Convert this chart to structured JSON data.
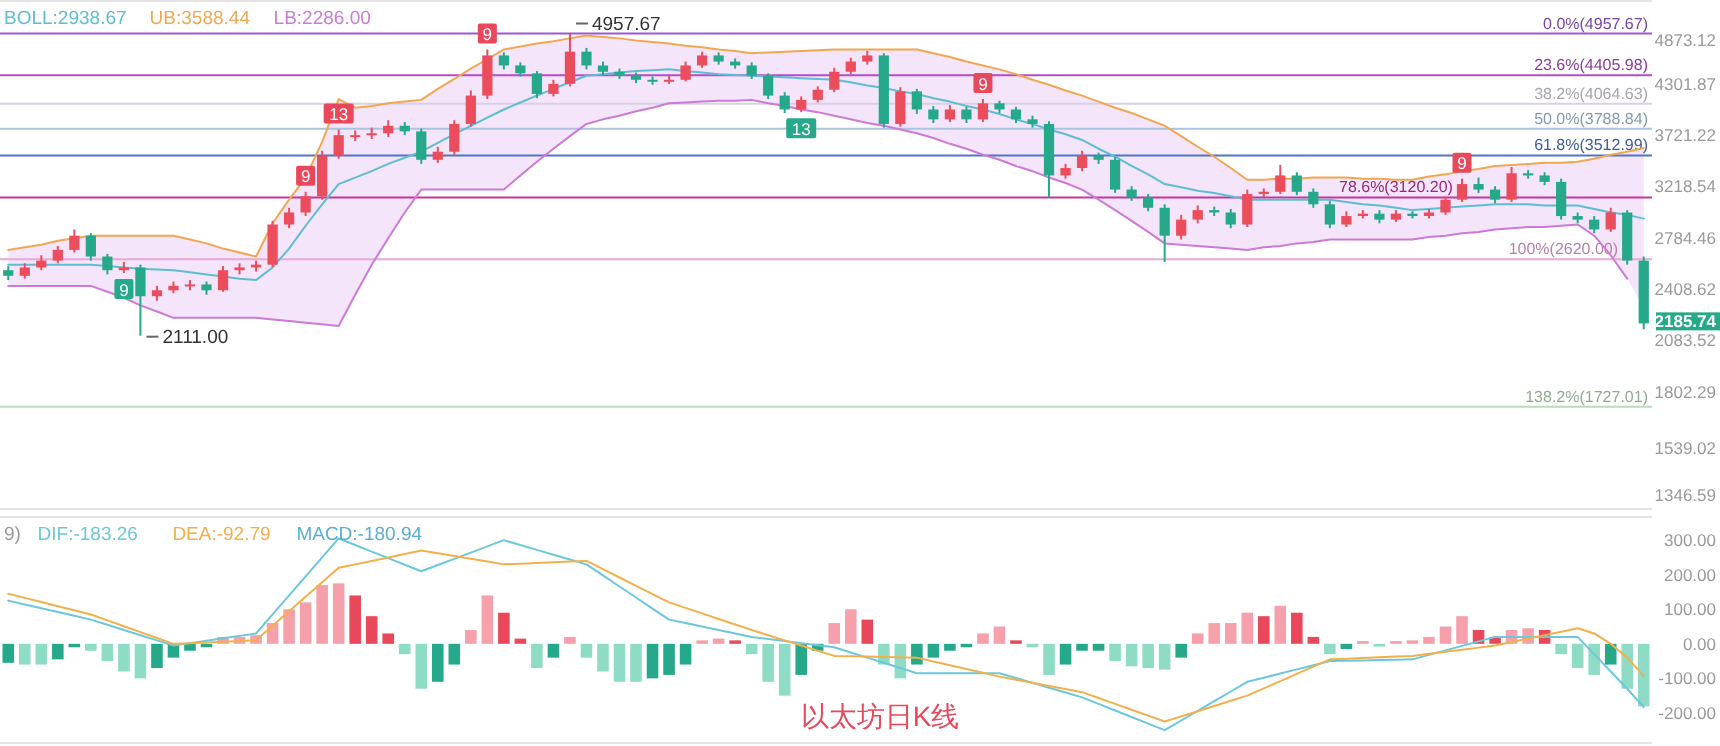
{
  "chart_data": [
    {
      "type": "candlestick",
      "log": true,
      "tick_labels": "y",
      "ylim": [
        1290,
        5450
      ],
      "yticks": [
        4873.12,
        4301.87,
        3721.22,
        3218.54,
        2784.46,
        2408.62,
        2083.52,
        1802.29,
        1539.02,
        1346.59
      ],
      "categories": [
        null,
        null,
        null,
        null,
        null,
        null,
        null,
        null,
        null,
        null,
        null,
        null,
        null,
        null,
        null,
        null,
        null,
        null,
        null,
        null,
        null,
        null,
        null,
        null,
        null,
        null,
        null,
        null,
        null,
        null,
        null,
        null,
        null,
        null,
        null,
        null,
        null,
        null,
        null,
        null,
        null,
        null,
        null,
        null,
        null,
        null,
        null,
        null,
        null,
        null,
        null,
        null,
        null,
        null,
        null,
        null,
        null,
        null,
        null,
        null,
        null,
        null,
        null,
        null,
        null,
        null,
        null,
        null,
        null,
        null,
        null,
        null,
        null,
        null,
        null,
        null,
        null,
        null,
        null,
        null,
        null,
        null,
        null,
        null,
        null,
        null,
        null,
        null,
        null,
        null,
        null,
        null,
        null,
        null,
        null,
        null,
        null,
        null,
        null,
        null
      ],
      "ohlc": [
        [
          2540,
          2570,
          2470,
          2500
        ],
        [
          2500,
          2590,
          2480,
          2560
        ],
        [
          2560,
          2650,
          2540,
          2610
        ],
        [
          2610,
          2720,
          2590,
          2690
        ],
        [
          2690,
          2850,
          2670,
          2800
        ],
        [
          2800,
          2820,
          2610,
          2640
        ],
        [
          2640,
          2660,
          2510,
          2540
        ],
        [
          2540,
          2600,
          2520,
          2560
        ],
        [
          2560,
          2580,
          2111,
          2360
        ],
        [
          2360,
          2430,
          2330,
          2400
        ],
        [
          2400,
          2460,
          2380,
          2430
        ],
        [
          2430,
          2470,
          2400,
          2440
        ],
        [
          2440,
          2460,
          2370,
          2400
        ],
        [
          2400,
          2570,
          2390,
          2540
        ],
        [
          2540,
          2590,
          2510,
          2560
        ],
        [
          2560,
          2610,
          2530,
          2580
        ],
        [
          2580,
          2920,
          2560,
          2890
        ],
        [
          2890,
          3030,
          2860,
          2990
        ],
        [
          2990,
          3170,
          2960,
          3130
        ],
        [
          3130,
          3560,
          3100,
          3510
        ],
        [
          3510,
          3780,
          3480,
          3720
        ],
        [
          3720,
          3770,
          3660,
          3720
        ],
        [
          3720,
          3800,
          3680,
          3740
        ],
        [
          3740,
          3880,
          3700,
          3820
        ],
        [
          3820,
          3860,
          3720,
          3760
        ],
        [
          3760,
          3790,
          3430,
          3470
        ],
        [
          3470,
          3600,
          3440,
          3550
        ],
        [
          3550,
          3880,
          3520,
          3840
        ],
        [
          3840,
          4220,
          3810,
          4160
        ],
        [
          4160,
          4740,
          4120,
          4660
        ],
        [
          4660,
          4700,
          4480,
          4530
        ],
        [
          4530,
          4570,
          4390,
          4430
        ],
        [
          4430,
          4460,
          4130,
          4180
        ],
        [
          4180,
          4350,
          4150,
          4300
        ],
        [
          4300,
          4957.67,
          4270,
          4710
        ],
        [
          4710,
          4760,
          4480,
          4530
        ],
        [
          4530,
          4580,
          4410,
          4450
        ],
        [
          4450,
          4490,
          4360,
          4400
        ],
        [
          4400,
          4440,
          4310,
          4350
        ],
        [
          4350,
          4390,
          4290,
          4330
        ],
        [
          4330,
          4400,
          4300,
          4350
        ],
        [
          4350,
          4580,
          4330,
          4530
        ],
        [
          4530,
          4710,
          4500,
          4660
        ],
        [
          4660,
          4700,
          4540,
          4580
        ],
        [
          4580,
          4620,
          4490,
          4530
        ],
        [
          4530,
          4570,
          4360,
          4400
        ],
        [
          4400,
          4430,
          4120,
          4160
        ],
        [
          4160,
          4200,
          3960,
          4000
        ],
        [
          4000,
          4150,
          3970,
          4110
        ],
        [
          4110,
          4270,
          4080,
          4230
        ],
        [
          4230,
          4500,
          4200,
          4450
        ],
        [
          4450,
          4630,
          4420,
          4580
        ],
        [
          4580,
          4720,
          4540,
          4660
        ],
        [
          4660,
          4690,
          3800,
          3840
        ],
        [
          3840,
          4260,
          3810,
          4210
        ],
        [
          4210,
          4240,
          3950,
          4000
        ],
        [
          4000,
          4040,
          3850,
          3890
        ],
        [
          3890,
          4050,
          3860,
          4000
        ],
        [
          4000,
          4030,
          3850,
          3890
        ],
        [
          3890,
          4120,
          3860,
          4070
        ],
        [
          4070,
          4100,
          3960,
          4000
        ],
        [
          4000,
          4030,
          3850,
          3890
        ],
        [
          3890,
          3930,
          3800,
          3840
        ],
        [
          3840,
          3870,
          3120,
          3320
        ],
        [
          3320,
          3430,
          3290,
          3390
        ],
        [
          3390,
          3560,
          3360,
          3510
        ],
        [
          3510,
          3540,
          3430,
          3470
        ],
        [
          3470,
          3500,
          3160,
          3190
        ],
        [
          3190,
          3220,
          3090,
          3120
        ],
        [
          3120,
          3150,
          3000,
          3030
        ],
        [
          3030,
          3060,
          2600,
          2800
        ],
        [
          2800,
          2970,
          2770,
          2930
        ],
        [
          2930,
          3050,
          2900,
          3010
        ],
        [
          3010,
          3040,
          2960,
          2990
        ],
        [
          2990,
          3020,
          2860,
          2890
        ],
        [
          2890,
          3190,
          2870,
          3150
        ],
        [
          3150,
          3200,
          3120,
          3170
        ],
        [
          3170,
          3420,
          3150,
          3320
        ],
        [
          3320,
          3350,
          3140,
          3170
        ],
        [
          3170,
          3200,
          3030,
          3060
        ],
        [
          3060,
          3090,
          2860,
          2890
        ],
        [
          2890,
          3000,
          2870,
          2960
        ],
        [
          2960,
          3010,
          2940,
          2980
        ],
        [
          2980,
          3010,
          2900,
          2930
        ],
        [
          2930,
          3010,
          2910,
          2980
        ],
        [
          2980,
          3000,
          2940,
          2960
        ],
        [
          2960,
          3020,
          2940,
          2990
        ],
        [
          2990,
          3130,
          2970,
          3100
        ],
        [
          3100,
          3290,
          3080,
          3240
        ],
        [
          3240,
          3300,
          3160,
          3190
        ],
        [
          3190,
          3220,
          3070,
          3100
        ],
        [
          3100,
          3400,
          3080,
          3340
        ],
        [
          3340,
          3370,
          3290,
          3320
        ],
        [
          3320,
          3350,
          3230,
          3260
        ],
        [
          3260,
          3290,
          2930,
          2960
        ],
        [
          2960,
          2990,
          2900,
          2930
        ],
        [
          2930,
          2960,
          2820,
          2850
        ],
        [
          2850,
          3030,
          2830,
          2990
        ],
        [
          2990,
          3010,
          2580,
          2610
        ],
        [
          2610,
          2640,
          2150,
          2185.74
        ]
      ],
      "value_labels": [
        null,
        null,
        null,
        null,
        null,
        null,
        null,
        null,
        "2111.00",
        null,
        null,
        null,
        null,
        null,
        null,
        null,
        null,
        null,
        null,
        null,
        null,
        null,
        null,
        null,
        null,
        null,
        null,
        null,
        null,
        null,
        null,
        null,
        null,
        null,
        "4957.67",
        null,
        null,
        null,
        null,
        null,
        null,
        null,
        null,
        null,
        null,
        null,
        null,
        null,
        null,
        null,
        null,
        null,
        null,
        null,
        null,
        null,
        null,
        null,
        null,
        null,
        null,
        null,
        null,
        null,
        null,
        null,
        null,
        null,
        null,
        null,
        null,
        null,
        null,
        null,
        null,
        null,
        null,
        null,
        null,
        null,
        null,
        null,
        null,
        null,
        null,
        null,
        null,
        null,
        null,
        null,
        null,
        null,
        null,
        null,
        null,
        null,
        null,
        null,
        null,
        "2185.74"
      ],
      "colors": [
        "#26a98a",
        "#eb4d5c",
        "#eb4d5c",
        "#eb4d5c",
        "#eb4d5c",
        "#26a98a",
        "#26a98a",
        "#eb4d5c",
        "#26a98a",
        "#eb4d5c",
        "#eb4d5c",
        "#eb4d5c",
        "#26a98a",
        "#eb4d5c",
        "#eb4d5c",
        "#eb4d5c",
        "#eb4d5c",
        "#eb4d5c",
        "#eb4d5c",
        "#eb4d5c",
        "#eb4d5c",
        "#eb4d5c",
        "#eb4d5c",
        "#eb4d5c",
        "#26a98a",
        "#26a98a",
        "#eb4d5c",
        "#eb4d5c",
        "#eb4d5c",
        "#eb4d5c",
        "#26a98a",
        "#26a98a",
        "#26a98a",
        "#eb4d5c",
        "#eb4d5c",
        "#26a98a",
        "#26a98a",
        "#26a98a",
        "#26a98a",
        "#26a98a",
        "#eb4d5c",
        "#eb4d5c",
        "#eb4d5c",
        "#26a98a",
        "#26a98a",
        "#26a98a",
        "#26a98a",
        "#26a98a",
        "#eb4d5c",
        "#eb4d5c",
        "#eb4d5c",
        "#eb4d5c",
        "#eb4d5c",
        "#26a98a",
        "#eb4d5c",
        "#26a98a",
        "#26a98a",
        "#eb4d5c",
        "#26a98a",
        "#eb4d5c",
        "#26a98a",
        "#26a98a",
        "#26a98a",
        "#26a98a",
        "#eb4d5c",
        "#eb4d5c",
        "#26a98a",
        "#26a98a",
        "#26a98a",
        "#26a98a",
        "#26a98a",
        "#eb4d5c",
        "#eb4d5c",
        "#26a98a",
        "#26a98a",
        "#eb4d5c",
        "#eb4d5c",
        "#eb4d5c",
        "#26a98a",
        "#26a98a",
        "#26a98a",
        "#eb4d5c",
        "#eb4d5c",
        "#26a98a",
        "#eb4d5c",
        "#26a98a",
        "#eb4d5c",
        "#eb4d5c",
        "#eb4d5c",
        "#26a98a",
        "#26a98a",
        "#eb4d5c",
        "#26a98a",
        "#26a98a",
        "#26a98a",
        "#26a98a",
        "#26a98a",
        "#eb4d5c",
        "#26a98a",
        "#26a98a"
      ],
      "series": [
        {
          "type": "line",
          "name": "BOLL:2938.67",
          "color": "#5fbcd3",
          "values": [
            2580,
            2580,
            2580,
            2580,
            2580,
            2580,
            2570,
            2560,
            2550,
            2545,
            2540,
            2525,
            2510,
            2495,
            2480,
            2470,
            2560,
            2700,
            2880,
            3060,
            3240,
            3300,
            3360,
            3430,
            3490,
            3550,
            3640,
            3730,
            3820,
            3910,
            4000,
            4080,
            4160,
            4240,
            4320,
            4400,
            4420,
            4440,
            4460,
            4470,
            4480,
            4460,
            4440,
            4420,
            4410,
            4400,
            4390,
            4380,
            4370,
            4360,
            4350,
            4320,
            4280,
            4250,
            4210,
            4180,
            4130,
            4090,
            4040,
            4000,
            3950,
            3890,
            3840,
            3780,
            3730,
            3670,
            3580,
            3500,
            3410,
            3330,
            3240,
            3210,
            3180,
            3160,
            3130,
            3100,
            3100,
            3100,
            3100,
            3100,
            3100,
            3080,
            3060,
            3050,
            3030,
            3010,
            3020,
            3030,
            3040,
            3050,
            3060,
            3060,
            3060,
            3050,
            3050,
            3050,
            3020,
            2990,
            2970,
            2938.67
          ],
          "upper": [
            2690,
            2710,
            2730,
            2760,
            2780,
            2800,
            2800,
            2800,
            2800,
            2800,
            2800,
            2770,
            2740,
            2700,
            2670,
            2640,
            2900,
            3100,
            3300,
            3650,
            4120,
            4020,
            4040,
            4070,
            4090,
            4110,
            4240,
            4360,
            4490,
            4610,
            4740,
            4780,
            4820,
            4850,
            4890,
            4930,
            4910,
            4890,
            4860,
            4840,
            4820,
            4790,
            4770,
            4740,
            4720,
            4690,
            4700,
            4710,
            4720,
            4730,
            4740,
            4740,
            4740,
            4740,
            4740,
            4740,
            4690,
            4640,
            4580,
            4530,
            4480,
            4420,
            4350,
            4290,
            4220,
            4160,
            4090,
            4020,
            3960,
            3890,
            3820,
            3710,
            3600,
            3500,
            3390,
            3280,
            3280,
            3290,
            3290,
            3300,
            3300,
            3300,
            3290,
            3290,
            3280,
            3280,
            3310,
            3330,
            3360,
            3380,
            3410,
            3420,
            3430,
            3440,
            3440,
            3450,
            3480,
            3520,
            3550,
            3588.44
          ],
          "lower": [
            2430,
            2430,
            2430,
            2430,
            2430,
            2430,
            2390,
            2350,
            2300,
            2260,
            2220,
            2220,
            2220,
            2220,
            2220,
            2220,
            2210,
            2200,
            2190,
            2180,
            2170,
            2370,
            2580,
            2780,
            2990,
            3190,
            3190,
            3190,
            3190,
            3190,
            3190,
            3320,
            3450,
            3580,
            3710,
            3840,
            3890,
            3930,
            3980,
            4020,
            4070,
            4080,
            4090,
            4100,
            4100,
            4110,
            4070,
            4040,
            4000,
            3970,
            3930,
            3890,
            3850,
            3820,
            3780,
            3740,
            3690,
            3630,
            3580,
            3520,
            3470,
            3410,
            3360,
            3300,
            3250,
            3190,
            3100,
            3010,
            2920,
            2830,
            2740,
            2730,
            2720,
            2710,
            2700,
            2690,
            2710,
            2720,
            2740,
            2750,
            2770,
            2770,
            2770,
            2770,
            2770,
            2770,
            2790,
            2800,
            2820,
            2830,
            2850,
            2860,
            2870,
            2870,
            2880,
            2890,
            2800,
            2650,
            2480,
            2286.0
          ]
        },
        {
          "type": "line",
          "name": "UB:3588.44",
          "color": "#f0a850",
          "values": [
            2690,
            2710,
            2730,
            2760,
            2780,
            2800,
            2800,
            2800,
            2800,
            2800,
            2800,
            2770,
            2740,
            2700,
            2670,
            2640,
            2900,
            3100,
            3300,
            3650,
            4120,
            4020,
            4040,
            4070,
            4090,
            4110,
            4240,
            4360,
            4490,
            4610,
            4740,
            4780,
            4820,
            4850,
            4890,
            4930,
            4910,
            4890,
            4860,
            4840,
            4820,
            4790,
            4770,
            4740,
            4720,
            4690,
            4700,
            4710,
            4720,
            4730,
            4740,
            4740,
            4740,
            4740,
            4740,
            4740,
            4690,
            4640,
            4580,
            4530,
            4480,
            4420,
            4350,
            4290,
            4220,
            4160,
            4090,
            4020,
            3960,
            3890,
            3820,
            3710,
            3600,
            3500,
            3390,
            3280,
            3280,
            3290,
            3290,
            3300,
            3300,
            3300,
            3290,
            3290,
            3280,
            3280,
            3310,
            3330,
            3360,
            3380,
            3410,
            3420,
            3430,
            3440,
            3440,
            3450,
            3480,
            3520,
            3550,
            3588.44
          ]
        },
        {
          "type": "line",
          "name": "LB:2286.00",
          "color": "#cc7ad6",
          "values": [
            2430,
            2430,
            2430,
            2430,
            2430,
            2430,
            2390,
            2350,
            2300,
            2260,
            2220,
            2220,
            2220,
            2220,
            2220,
            2220,
            2210,
            2200,
            2190,
            2180,
            2170,
            2370,
            2580,
            2780,
            2990,
            3190,
            3190,
            3190,
            3190,
            3190,
            3190,
            3320,
            3450,
            3580,
            3710,
            3840,
            3890,
            3930,
            3980,
            4020,
            4070,
            4080,
            4090,
            4100,
            4100,
            4110,
            4070,
            4040,
            4000,
            3970,
            3930,
            3890,
            3850,
            3820,
            3780,
            3740,
            3690,
            3630,
            3580,
            3520,
            3470,
            3410,
            3360,
            3300,
            3250,
            3190,
            3100,
            3010,
            2920,
            2830,
            2740,
            2730,
            2720,
            2710,
            2700,
            2690,
            2710,
            2720,
            2740,
            2750,
            2770,
            2770,
            2770,
            2770,
            2770,
            2770,
            2790,
            2800,
            2820,
            2830,
            2850,
            2860,
            2870,
            2870,
            2880,
            2890,
            2800,
            2650,
            2480,
            null
          ]
        }
      ],
      "ref_lines": [
        {
          "axis": "y",
          "value": 4957.67,
          "label": "0.0%(4957.67)",
          "color": "#9b59d6"
        },
        {
          "axis": "y",
          "value": 4405.98,
          "label": "23.6%(4405.98)",
          "color": "#b44cc8"
        },
        {
          "axis": "y",
          "value": 4064.63,
          "label": "38.2%(4064.63)",
          "color": "#d8d0e4"
        },
        {
          "axis": "y",
          "value": 3788.84,
          "label": "50.0%(3788.84)",
          "color": "#a8c4e0"
        },
        {
          "axis": "y",
          "value": 3512.99,
          "label": "61.8%(3512.99)",
          "color": "#4f74c8"
        },
        {
          "axis": "y",
          "value": 3120.2,
          "label": "78.6%(3120.20)",
          "color": "#c2369e"
        },
        {
          "axis": "y",
          "value": 2620.0,
          "label": "100%(2620.00)",
          "color": "#e8a8d8"
        },
        {
          "axis": "y",
          "value": 1727.01,
          "label": "138.2%(1727.01)",
          "color": "#b8dcb8"
        }
      ],
      "annotations": [
        {
          "text": "9",
          "y": 2520
        },
        {
          "text": "9",
          "y": 3170
        },
        {
          "text": "13",
          "y": 3780
        },
        {
          "text": "9",
          "y": 4740
        },
        {
          "text": "9",
          "y": 4120
        },
        {
          "text": "13",
          "y": 3970
        },
        {
          "text": "9",
          "y": 3290
        }
      ]
    },
    {
      "type": "line",
      "title": "9)",
      "tick_labels": false,
      "ylim": [
        -290,
        370
      ],
      "categories": [
        null,
        null,
        null,
        null,
        null,
        null,
        null,
        null,
        null,
        null,
        null,
        null,
        null,
        null,
        null,
        null,
        null,
        null,
        null,
        null,
        null,
        null,
        null,
        null,
        null,
        null,
        null,
        null,
        null,
        null,
        null,
        null,
        null,
        null,
        null,
        null,
        null,
        null,
        null,
        null,
        null,
        null,
        null,
        null,
        null,
        null,
        null,
        null,
        null,
        null,
        null,
        null,
        null,
        null,
        null,
        null,
        null,
        null,
        null,
        null,
        null,
        null,
        null,
        null,
        null,
        null,
        null,
        null,
        null,
        null,
        null,
        null,
        null,
        null,
        null,
        null,
        null,
        null,
        null,
        null,
        null,
        null,
        null,
        null,
        null,
        null,
        null,
        null,
        null,
        null,
        null,
        null,
        null,
        null,
        null,
        null,
        null,
        null,
        null,
        null
      ],
      "series": [
        {
          "type": "line",
          "name": "DIF:-183.26",
          "color": "#6cc7dc",
          "values": [
            125,
            114,
            103,
            92,
            81,
            70,
            55,
            40,
            25,
            10,
            -5,
            2,
            9,
            16,
            23,
            30,
            85,
            140,
            195,
            250,
            305,
            286,
            267,
            248,
            229,
            210,
            228,
            246,
            264,
            282,
            300,
            286,
            272,
            258,
            244,
            230,
            198,
            166,
            134,
            102,
            70,
            60,
            50,
            40,
            30,
            20,
            14,
            8,
            2,
            -4,
            -10,
            -25,
            -40,
            -55,
            -70,
            -85,
            -85,
            -85,
            -85,
            -85,
            -85,
            -99,
            -113,
            -127,
            -141,
            -155,
            -174,
            -193,
            -212,
            -231,
            -250,
            -222,
            -194,
            -166,
            -138,
            -110,
            -98,
            -86,
            -74,
            -62,
            -50,
            -49,
            -48,
            -47,
            -46,
            -45,
            -32,
            -19,
            -6,
            7,
            20,
            20,
            20,
            20,
            20,
            20,
            -30,
            -80,
            -130,
            -183.26
          ]
        },
        {
          "type": "line",
          "name": "DEA:-92.79",
          "color": "#f2b04c",
          "values": [
            145,
            133,
            121,
            109,
            97,
            85,
            68,
            51,
            34,
            17,
            0,
            2,
            4,
            6,
            8,
            10,
            52,
            94,
            136,
            178,
            220,
            230,
            240,
            250,
            260,
            270,
            262,
            254,
            246,
            238,
            230,
            232,
            234,
            236,
            238,
            240,
            216,
            192,
            168,
            144,
            120,
            104,
            88,
            72,
            56,
            40,
            25,
            10,
            -5,
            -20,
            -35,
            -36,
            -37,
            -38,
            -39,
            -40,
            -51,
            -62,
            -73,
            -84,
            -95,
            -104,
            -113,
            -122,
            -131,
            -140,
            -157,
            -174,
            -191,
            -208,
            -225,
            -210,
            -195,
            -180,
            -165,
            -150,
            -129,
            -108,
            -87,
            -66,
            -45,
            -43,
            -41,
            -39,
            -37,
            -35,
            -29,
            -23,
            -17,
            -11,
            -5,
            5,
            15,
            25,
            35,
            45,
            30,
            0,
            -40,
            -92.79
          ]
        }
      ]
    },
    {
      "type": "bar",
      "tick_labels": "y",
      "ylim": [
        -290,
        370
      ],
      "yticks": [
        {
          "value": 300,
          "label": "300.00"
        },
        {
          "value": 200,
          "label": "200.00"
        },
        {
          "value": 100,
          "label": "100.00"
        },
        {
          "value": 0,
          "label": "0.00"
        },
        {
          "value": -100,
          "label": "-100.00"
        },
        {
          "value": -200,
          "label": "-200.00"
        }
      ],
      "categories": [
        null,
        null,
        null,
        null,
        null,
        null,
        null,
        null,
        null,
        null,
        null,
        null,
        null,
        null,
        null,
        null,
        null,
        null,
        null,
        null,
        null,
        null,
        null,
        null,
        null,
        null,
        null,
        null,
        null,
        null,
        null,
        null,
        null,
        null,
        null,
        null,
        null,
        null,
        null,
        null,
        null,
        null,
        null,
        null,
        null,
        null,
        null,
        null,
        null,
        null,
        null,
        null,
        null,
        null,
        null,
        null,
        null,
        null,
        null,
        null,
        null,
        null,
        null,
        null,
        null,
        null,
        null,
        null,
        null,
        null,
        null,
        null,
        null,
        null,
        null,
        null,
        null,
        null,
        null,
        null,
        null,
        null,
        null,
        null,
        null,
        null,
        null,
        null,
        null,
        null,
        null,
        null,
        null,
        null,
        null,
        null,
        null,
        null,
        null,
        null
      ],
      "series": [
        {
          "name": "MACD:-180.94",
          "color": "#5aaed0",
          "values": [
            -55,
            -60,
            -60,
            -45,
            -10,
            -20,
            -50,
            -80,
            -100,
            -70,
            -40,
            -20,
            -10,
            20,
            20,
            25,
            60,
            100,
            120,
            170,
            175,
            140,
            80,
            30,
            -30,
            -130,
            -110,
            -60,
            40,
            140,
            90,
            15,
            -70,
            -40,
            20,
            -40,
            -80,
            -110,
            -110,
            -100,
            -90,
            -60,
            10,
            15,
            10,
            -30,
            -110,
            -150,
            -90,
            -20,
            60,
            100,
            70,
            -60,
            -100,
            -60,
            -40,
            -20,
            -10,
            30,
            50,
            10,
            -10,
            -90,
            -60,
            -20,
            -20,
            -50,
            -65,
            -70,
            -75,
            -40,
            30,
            60,
            60,
            90,
            80,
            110,
            90,
            20,
            -30,
            -15,
            8,
            -8,
            8,
            10,
            20,
            50,
            80,
            40,
            20,
            40,
            45,
            40,
            -30,
            -70,
            -90,
            -60,
            -130,
            -180.94
          ],
          "colors": [
            "#26a98a",
            "#8fdcc6",
            "#8fdcc6",
            "#26a98a",
            "#26a98a",
            "#8fdcc6",
            "#8fdcc6",
            "#8fdcc6",
            "#8fdcc6",
            "#26a98a",
            "#26a98a",
            "#26a98a",
            "#26a98a",
            "#f5a0ab",
            "#f5a0ab",
            "#f5a0ab",
            "#f5a0ab",
            "#f5a0ab",
            "#f5a0ab",
            "#f5a0ab",
            "#f5a0ab",
            "#e9485b",
            "#e9485b",
            "#e9485b",
            "#8fdcc6",
            "#8fdcc6",
            "#26a98a",
            "#26a98a",
            "#f5a0ab",
            "#f5a0ab",
            "#e9485b",
            "#e9485b",
            "#8fdcc6",
            "#26a98a",
            "#f5a0ab",
            "#8fdcc6",
            "#8fdcc6",
            "#8fdcc6",
            "#8fdcc6",
            "#26a98a",
            "#26a98a",
            "#26a98a",
            "#f5a0ab",
            "#f5a0ab",
            "#e9485b",
            "#8fdcc6",
            "#8fdcc6",
            "#8fdcc6",
            "#26a98a",
            "#26a98a",
            "#f5a0ab",
            "#f5a0ab",
            "#e9485b",
            "#8fdcc6",
            "#8fdcc6",
            "#26a98a",
            "#26a98a",
            "#26a98a",
            "#26a98a",
            "#f5a0ab",
            "#f5a0ab",
            "#e9485b",
            "#8fdcc6",
            "#8fdcc6",
            "#26a98a",
            "#26a98a",
            "#26a98a",
            "#8fdcc6",
            "#8fdcc6",
            "#8fdcc6",
            "#8fdcc6",
            "#26a98a",
            "#f5a0ab",
            "#f5a0ab",
            "#f5a0ab",
            "#f5a0ab",
            "#e9485b",
            "#f5a0ab",
            "#e9485b",
            "#e9485b",
            "#8fdcc6",
            "#26a98a",
            "#f5a0ab",
            "#8fdcc6",
            "#f5a0ab",
            "#f5a0ab",
            "#f5a0ab",
            "#f5a0ab",
            "#f5a0ab",
            "#e9485b",
            "#e9485b",
            "#f5a0ab",
            "#f5a0ab",
            "#e9485b",
            "#8fdcc6",
            "#8fdcc6",
            "#8fdcc6",
            "#26a98a",
            "#8fdcc6",
            "#8fdcc6"
          ]
        }
      ],
      "annotations": [
        "以太坊日K线"
      ]
    }
  ]
}
